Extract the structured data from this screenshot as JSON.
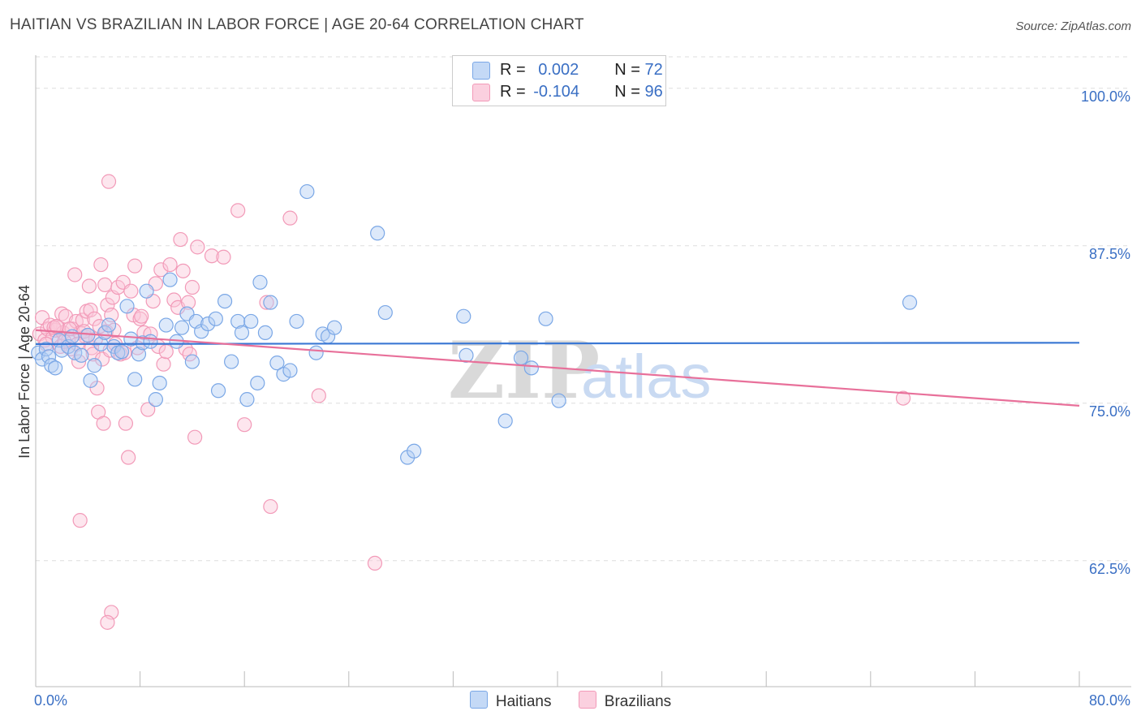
{
  "header": {
    "title": "HAITIAN VS BRAZILIAN IN LABOR FORCE | AGE 20-64 CORRELATION CHART",
    "source": "Source: ZipAtlas.com"
  },
  "watermark": {
    "zip": "ZIP",
    "atlas": "atlas"
  },
  "legend": {
    "haitians": {
      "r_label": "R = ",
      "r_value": "0.002",
      "n_label": "N = ",
      "n_value": "72"
    },
    "brazilians": {
      "r_label": "R = ",
      "r_value": "-0.104",
      "n_label": "N = ",
      "n_value": "96"
    }
  },
  "bottom_legend": {
    "haitians": "Haitians",
    "brazilians": "Brazilians"
  },
  "chart_data": {
    "type": "scatter",
    "title": "HAITIAN VS BRAZILIAN IN LABOR FORCE | AGE 20-64 CORRELATION CHART",
    "xlabel": "",
    "ylabel": "In Labor Force | Age 20-64",
    "xlim": [
      0,
      80
    ],
    "ylim": [
      52.5,
      102.5
    ],
    "x_tick_labels": [
      "0.0%",
      "80.0%"
    ],
    "y_ticks": [
      62.5,
      75.0,
      87.5,
      100.0
    ],
    "y_tick_labels": [
      "62.5%",
      "75.0%",
      "87.5%",
      "100.0%"
    ],
    "grid": true,
    "colors": {
      "haitians": "#7aa7e6",
      "brazilians": "#f29ab8",
      "haitians_line": "#3b78d4",
      "brazilians_line": "#e8709a"
    },
    "series": [
      {
        "name": "Haitians",
        "trend": {
          "x": [
            0,
            80
          ],
          "y": [
            79.7,
            79.8
          ]
        },
        "points": [
          [
            0.2,
            79.0
          ],
          [
            0.5,
            78.5
          ],
          [
            0.8,
            79.3
          ],
          [
            1.0,
            78.7
          ],
          [
            1.2,
            78.0
          ],
          [
            1.5,
            77.8
          ],
          [
            1.8,
            80.0
          ],
          [
            2.0,
            79.2
          ],
          [
            2.5,
            79.5
          ],
          [
            2.8,
            80.3
          ],
          [
            3.0,
            79.0
          ],
          [
            3.5,
            78.8
          ],
          [
            4.0,
            80.4
          ],
          [
            4.2,
            76.8
          ],
          [
            4.5,
            78.0
          ],
          [
            5.0,
            79.7
          ],
          [
            5.3,
            80.6
          ],
          [
            5.6,
            81.2
          ],
          [
            6.0,
            79.5
          ],
          [
            6.3,
            79.0
          ],
          [
            6.6,
            79.1
          ],
          [
            7.0,
            82.7
          ],
          [
            7.3,
            80.1
          ],
          [
            7.6,
            76.9
          ],
          [
            7.9,
            78.9
          ],
          [
            8.2,
            79.8
          ],
          [
            8.5,
            83.9
          ],
          [
            8.8,
            79.9
          ],
          [
            9.2,
            75.3
          ],
          [
            9.5,
            76.6
          ],
          [
            10.0,
            81.2
          ],
          [
            10.3,
            84.8
          ],
          [
            10.8,
            79.9
          ],
          [
            11.2,
            81.0
          ],
          [
            11.6,
            82.1
          ],
          [
            12.0,
            78.3
          ],
          [
            12.3,
            81.5
          ],
          [
            12.7,
            80.7
          ],
          [
            13.2,
            81.3
          ],
          [
            13.8,
            81.7
          ],
          [
            14.0,
            76.0
          ],
          [
            14.5,
            83.1
          ],
          [
            15.0,
            78.3
          ],
          [
            15.5,
            81.5
          ],
          [
            15.8,
            80.6
          ],
          [
            16.2,
            75.3
          ],
          [
            16.5,
            81.5
          ],
          [
            17.0,
            76.6
          ],
          [
            17.2,
            84.6
          ],
          [
            17.6,
            80.6
          ],
          [
            18.0,
            83.0
          ],
          [
            18.5,
            78.2
          ],
          [
            19.0,
            77.3
          ],
          [
            19.5,
            77.6
          ],
          [
            20.0,
            81.5
          ],
          [
            20.8,
            91.8
          ],
          [
            21.5,
            79.0
          ],
          [
            22.0,
            80.5
          ],
          [
            22.4,
            80.3
          ],
          [
            22.9,
            81.0
          ],
          [
            26.2,
            88.5
          ],
          [
            26.8,
            82.2
          ],
          [
            28.5,
            70.7
          ],
          [
            29.0,
            71.2
          ],
          [
            32.8,
            81.9
          ],
          [
            33.0,
            78.8
          ],
          [
            36.0,
            73.6
          ],
          [
            37.2,
            78.6
          ],
          [
            38.0,
            77.8
          ],
          [
            39.1,
            81.7
          ],
          [
            40.1,
            75.2
          ],
          [
            67.0,
            83.0
          ]
        ]
      },
      {
        "name": "Brazilians",
        "trend": {
          "x": [
            0,
            80
          ],
          "y": [
            80.8,
            74.8
          ]
        },
        "points": [
          [
            0.3,
            80.5
          ],
          [
            0.5,
            81.8
          ],
          [
            0.7,
            80.0
          ],
          [
            0.9,
            80.9
          ],
          [
            1.1,
            81.2
          ],
          [
            1.3,
            80.2
          ],
          [
            1.5,
            80.8
          ],
          [
            1.7,
            81.0
          ],
          [
            1.9,
            79.5
          ],
          [
            2.0,
            82.1
          ],
          [
            2.1,
            80.6
          ],
          [
            2.3,
            81.9
          ],
          [
            2.5,
            80.0
          ],
          [
            2.7,
            79.3
          ],
          [
            2.8,
            80.9
          ],
          [
            3.0,
            85.2
          ],
          [
            3.1,
            81.5
          ],
          [
            3.3,
            78.3
          ],
          [
            3.4,
            80.6
          ],
          [
            3.6,
            81.6
          ],
          [
            3.8,
            80.3
          ],
          [
            3.9,
            82.3
          ],
          [
            4.1,
            84.3
          ],
          [
            4.2,
            82.4
          ],
          [
            4.3,
            79.4
          ],
          [
            4.4,
            78.9
          ],
          [
            4.5,
            81.7
          ],
          [
            4.6,
            80.1
          ],
          [
            4.7,
            76.2
          ],
          [
            4.8,
            74.3
          ],
          [
            5.0,
            86.0
          ],
          [
            5.1,
            78.5
          ],
          [
            5.2,
            73.4
          ],
          [
            5.3,
            84.4
          ],
          [
            5.4,
            80.7
          ],
          [
            5.5,
            82.8
          ],
          [
            5.7,
            79.2
          ],
          [
            5.8,
            82.0
          ],
          [
            5.9,
            83.4
          ],
          [
            6.0,
            80.8
          ],
          [
            6.1,
            79.7
          ],
          [
            6.3,
            84.2
          ],
          [
            6.5,
            78.9
          ],
          [
            6.7,
            84.6
          ],
          [
            6.9,
            73.4
          ],
          [
            7.1,
            70.7
          ],
          [
            7.3,
            83.9
          ],
          [
            7.5,
            82.0
          ],
          [
            7.6,
            85.9
          ],
          [
            7.8,
            79.4
          ],
          [
            8.0,
            81.7
          ],
          [
            8.1,
            81.9
          ],
          [
            8.3,
            80.6
          ],
          [
            8.6,
            74.5
          ],
          [
            8.8,
            80.5
          ],
          [
            9.0,
            83.1
          ],
          [
            9.2,
            84.5
          ],
          [
            9.4,
            79.5
          ],
          [
            9.6,
            85.6
          ],
          [
            9.8,
            78.1
          ],
          [
            10.0,
            79.1
          ],
          [
            10.3,
            86.0
          ],
          [
            10.6,
            83.2
          ],
          [
            10.9,
            82.6
          ],
          [
            11.1,
            88.0
          ],
          [
            11.3,
            85.5
          ],
          [
            11.5,
            79.3
          ],
          [
            11.7,
            83.0
          ],
          [
            11.8,
            78.9
          ],
          [
            12.0,
            84.2
          ],
          [
            12.2,
            72.3
          ],
          [
            12.4,
            87.4
          ],
          [
            13.5,
            86.7
          ],
          [
            14.4,
            86.6
          ],
          [
            15.5,
            90.3
          ],
          [
            16.0,
            73.3
          ],
          [
            17.7,
            83.0
          ],
          [
            18.0,
            66.8
          ],
          [
            19.5,
            89.7
          ],
          [
            21.7,
            75.6
          ],
          [
            26.0,
            62.3
          ],
          [
            66.5,
            75.4
          ],
          [
            5.6,
            92.6
          ],
          [
            3.4,
            65.7
          ],
          [
            5.8,
            58.4
          ],
          [
            5.5,
            57.6
          ],
          [
            1.4,
            81.0
          ],
          [
            2.2,
            79.9
          ],
          [
            3.7,
            80.7
          ],
          [
            4.0,
            80.4
          ],
          [
            2.6,
            80.9
          ],
          [
            1.6,
            81.1
          ],
          [
            3.2,
            79.7
          ],
          [
            4.9,
            81.1
          ],
          [
            6.8,
            79.0
          ],
          [
            0.8,
            79.7
          ]
        ]
      }
    ]
  }
}
